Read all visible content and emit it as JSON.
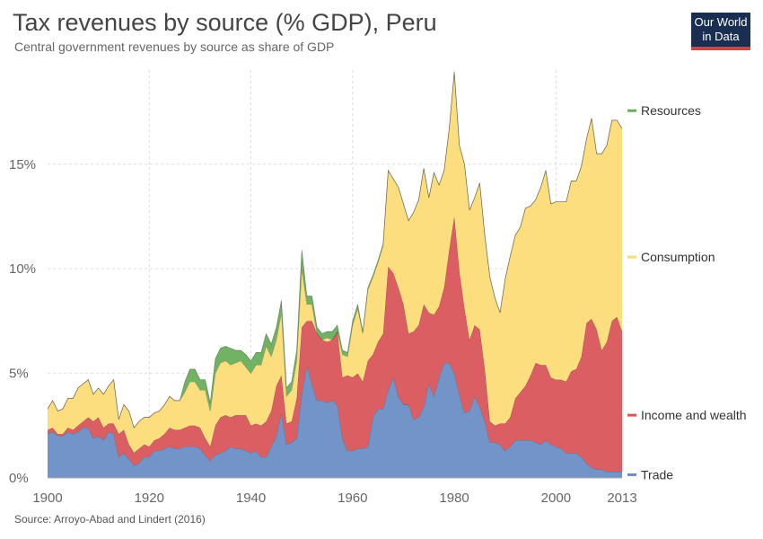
{
  "title": "Tax revenues by source (% GDP), Peru",
  "subtitle": "Central government revenues by source as share of GDP",
  "source": "Source: Arroyo-Abad and Lindert (2016)",
  "logo": {
    "line1": "Our World",
    "line2": "in Data"
  },
  "colors": {
    "Trade": "#6c8ec5",
    "Income and wealth": "#d9565a",
    "Consumption": "#fcdc78",
    "Resources": "#6aae5c"
  },
  "chart_data": {
    "type": "area",
    "stacked": true,
    "x": [
      1900,
      1901,
      1902,
      1903,
      1904,
      1905,
      1906,
      1907,
      1908,
      1909,
      1910,
      1911,
      1912,
      1913,
      1914,
      1915,
      1916,
      1917,
      1918,
      1919,
      1920,
      1921,
      1922,
      1923,
      1924,
      1925,
      1926,
      1927,
      1928,
      1929,
      1930,
      1931,
      1932,
      1933,
      1934,
      1935,
      1936,
      1937,
      1938,
      1939,
      1940,
      1941,
      1942,
      1943,
      1944,
      1945,
      1946,
      1947,
      1948,
      1949,
      1950,
      1951,
      1952,
      1953,
      1954,
      1955,
      1956,
      1957,
      1958,
      1959,
      1960,
      1961,
      1962,
      1963,
      1964,
      1965,
      1966,
      1967,
      1968,
      1969,
      1970,
      1971,
      1972,
      1973,
      1974,
      1975,
      1976,
      1977,
      1978,
      1979,
      1980,
      1981,
      1982,
      1983,
      1984,
      1985,
      1986,
      1987,
      1988,
      1989,
      1990,
      1991,
      1992,
      1993,
      1994,
      1995,
      1996,
      1997,
      1998,
      1999,
      2000,
      2001,
      2002,
      2003,
      2004,
      2005,
      2006,
      2007,
      2008,
      2009,
      2010,
      2011,
      2012,
      2013
    ],
    "series": [
      {
        "name": "Trade",
        "values": [
          2.1,
          2.2,
          2.0,
          2.0,
          2.2,
          2.1,
          2.2,
          2.4,
          2.4,
          1.9,
          2.0,
          1.8,
          2.2,
          2.1,
          1.0,
          1.2,
          0.9,
          0.6,
          0.7,
          1.0,
          1.0,
          1.3,
          1.3,
          1.4,
          1.5,
          1.4,
          1.4,
          1.5,
          1.5,
          1.5,
          1.4,
          1.1,
          0.8,
          1.1,
          1.2,
          1.3,
          1.5,
          1.4,
          1.4,
          1.3,
          1.2,
          1.3,
          1.0,
          1.0,
          1.5,
          2.0,
          3.1,
          1.6,
          1.7,
          1.9,
          4.0,
          5.4,
          4.5,
          3.7,
          3.7,
          3.6,
          3.7,
          3.5,
          1.9,
          1.3,
          1.3,
          1.4,
          1.4,
          1.5,
          2.9,
          3.3,
          3.3,
          4.2,
          4.8,
          3.9,
          3.5,
          3.5,
          2.8,
          2.9,
          3.4,
          4.5,
          3.9,
          4.8,
          5.5,
          5.5,
          5.0,
          4.0,
          3.1,
          3.2,
          3.9,
          3.4,
          2.7,
          1.7,
          1.7,
          1.6,
          1.3,
          1.5,
          1.8,
          1.8,
          1.8,
          1.8,
          1.7,
          1.6,
          1.8,
          1.6,
          1.5,
          1.4,
          1.2,
          1.2,
          1.2,
          1.0,
          0.7,
          0.5,
          0.4,
          0.4,
          0.3,
          0.3,
          0.3,
          0.3
        ]
      },
      {
        "name": "Income and wealth",
        "values": [
          0.2,
          0.2,
          0.1,
          0.1,
          0.2,
          0.2,
          0.3,
          0.3,
          0.5,
          0.8,
          0.9,
          0.6,
          0.4,
          0.5,
          1.1,
          1.1,
          0.7,
          0.6,
          0.7,
          0.6,
          0.5,
          0.5,
          0.6,
          0.7,
          0.9,
          0.9,
          0.9,
          0.9,
          1.0,
          1.0,
          1.0,
          0.8,
          0.7,
          1.4,
          1.7,
          1.7,
          1.4,
          1.6,
          1.6,
          1.7,
          1.3,
          1.3,
          1.5,
          1.7,
          1.7,
          2.4,
          1.8,
          1.0,
          1.0,
          1.9,
          3.2,
          2.1,
          3.0,
          3.2,
          2.9,
          2.9,
          2.9,
          3.5,
          2.9,
          3.6,
          3.5,
          3.6,
          3.2,
          4.1,
          3.0,
          3.2,
          3.6,
          5.9,
          5.0,
          5.2,
          4.8,
          3.4,
          4.2,
          4.4,
          4.9,
          3.4,
          3.9,
          3.4,
          3.6,
          5.4,
          7.5,
          5.9,
          5.0,
          3.4,
          3.4,
          3.7,
          2.5,
          1.0,
          0.8,
          1.0,
          1.3,
          1.4,
          2.0,
          2.3,
          2.6,
          3.1,
          3.8,
          3.8,
          3.6,
          3.2,
          3.2,
          3.3,
          3.4,
          3.9,
          4.0,
          4.8,
          6.7,
          7.1,
          6.7,
          5.7,
          6.2,
          7.2,
          7.4,
          6.7
        ]
      },
      {
        "name": "Consumption",
        "values": [
          1.0,
          1.3,
          1.1,
          1.2,
          1.4,
          1.5,
          1.8,
          1.8,
          1.8,
          1.3,
          1.4,
          1.6,
          1.8,
          2.1,
          0.7,
          1.2,
          1.6,
          1.2,
          1.3,
          1.3,
          1.4,
          1.3,
          1.3,
          1.4,
          1.5,
          1.4,
          1.4,
          1.7,
          2.1,
          2.1,
          1.8,
          2.3,
          1.7,
          2.5,
          2.6,
          2.6,
          2.5,
          2.5,
          2.6,
          2.3,
          2.5,
          2.8,
          2.9,
          3.6,
          2.6,
          2.2,
          3.0,
          1.3,
          1.5,
          1.8,
          2.8,
          0.8,
          0.8,
          0.0,
          0.0,
          0.2,
          0.0,
          0.0,
          1.1,
          0.9,
          2.5,
          3.1,
          2.3,
          3.4,
          3.7,
          3.8,
          4.2,
          4.6,
          4.5,
          4.8,
          4.8,
          5.4,
          5.7,
          6.0,
          6.5,
          5.5,
          6.8,
          5.8,
          5.6,
          5.8,
          6.9,
          6.0,
          6.9,
          6.2,
          6.1,
          7.0,
          6.4,
          6.9,
          6.1,
          5.3,
          6.9,
          7.7,
          7.8,
          7.9,
          8.5,
          8.1,
          7.8,
          8.5,
          9.3,
          8.3,
          8.5,
          8.5,
          8.6,
          9.1,
          9.0,
          9.1,
          8.8,
          9.6,
          8.4,
          9.4,
          9.4,
          9.6,
          9.4,
          9.7
        ]
      },
      {
        "name": "Resources",
        "values": [
          0,
          0,
          0,
          0,
          0,
          0,
          0,
          0,
          0,
          0,
          0,
          0,
          0,
          0,
          0,
          0,
          0,
          0,
          0,
          0,
          0,
          0,
          0,
          0,
          0,
          0,
          0,
          0.5,
          0.6,
          0.6,
          0.5,
          0.5,
          0.4,
          0.7,
          0.7,
          0.7,
          0.8,
          0.6,
          0.5,
          0.6,
          0.6,
          0.6,
          0.6,
          0.6,
          0.6,
          0.6,
          0.6,
          0.4,
          0.4,
          0.5,
          0.9,
          0.4,
          0.4,
          0.3,
          0.3,
          0.3,
          0.4,
          0.3,
          0.2,
          0.2,
          0.2,
          0.2,
          0.1,
          0.1,
          0.1,
          0.1,
          0.1,
          0.0,
          0.0,
          0.0,
          0.0,
          0.0,
          0.0,
          0.0,
          0.0,
          0.0,
          0.0,
          0.0,
          0.0,
          0,
          0,
          0,
          0,
          0,
          0,
          0,
          0,
          0,
          0,
          0,
          0,
          0,
          0,
          0,
          0,
          0,
          0,
          0,
          0,
          0,
          0,
          0,
          0,
          0,
          0,
          0,
          0,
          0,
          0,
          0,
          0,
          0,
          0,
          0
        ]
      }
    ],
    "xticks": [
      "1900",
      "1920",
      "1940",
      "1960",
      "1980",
      "2000",
      "2013"
    ],
    "yticks": [
      "0%",
      "5%",
      "10%",
      "15%"
    ],
    "ylim": [
      0,
      19.5
    ],
    "xlim": [
      1900,
      2013
    ],
    "grid": true,
    "legend": "right, end of series"
  }
}
